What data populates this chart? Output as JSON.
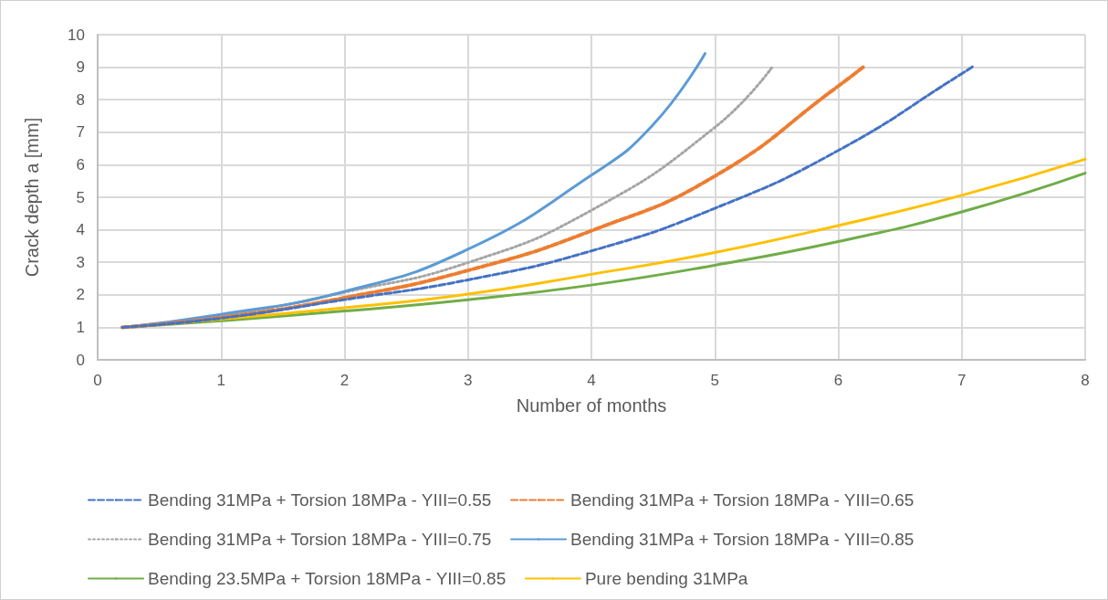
{
  "chart_data": {
    "type": "line",
    "xlabel": "Number of months",
    "ylabel": "Crack depth a [mm]",
    "xlim": [
      0,
      8
    ],
    "xticks": [
      0,
      1,
      2,
      3,
      4,
      5,
      6,
      7,
      8
    ],
    "ylim": [
      0,
      10
    ],
    "yticks": [
      0,
      1,
      2,
      3,
      4,
      5,
      6,
      7,
      8,
      9,
      10
    ],
    "grid": true,
    "legend": "bottom",
    "marker": "none",
    "series": [
      {
        "name": "Bending 31MPa + Torsion 18MPa - YIII=0.55",
        "color": "#4472c4",
        "line_style": "dashed",
        "x": [
          0.2,
          1,
          2,
          3,
          4,
          5,
          6,
          7,
          7.1
        ],
        "values": [
          1,
          1.28,
          1.85,
          2.46,
          3.35,
          4.66,
          6.44,
          8.8,
          9.05
        ]
      },
      {
        "name": "Bending 31MPa + Torsion 18MPa - YIII=0.65",
        "color": "#ed7d31",
        "line_style": "dashed",
        "x": [
          0.2,
          1,
          2,
          3,
          4,
          5,
          6,
          6.2
        ],
        "values": [
          1,
          1.3,
          1.91,
          2.75,
          3.97,
          5.65,
          8.42,
          9.0
        ]
      },
      {
        "name": "Bending 31MPa + Torsion 18MPa - YIII=0.75",
        "color": "#a5a5a5",
        "line_style": "dotted",
        "x": [
          0.2,
          1,
          2,
          3,
          4,
          5,
          5.46
        ],
        "values": [
          1,
          1.35,
          2.08,
          2.99,
          4.6,
          7.15,
          8.98
        ]
      },
      {
        "name": "Bending 31MPa + Torsion 18MPa - YIII=0.85",
        "color": "#5b9bd5",
        "line_style": "solid",
        "x": [
          0.2,
          1,
          2,
          3,
          4,
          4.49,
          4.92
        ],
        "values": [
          1,
          1.4,
          2.1,
          3.4,
          5.68,
          7.19,
          9.42
        ]
      },
      {
        "name": "Bending 23.5MPa + Torsion 18MPa - YIII=0.85",
        "color": "#70ad47",
        "line_style": "solid",
        "x": [
          0.2,
          1,
          2,
          3,
          4,
          5,
          6,
          7,
          8
        ],
        "values": [
          1,
          1.2,
          1.5,
          1.85,
          2.3,
          2.91,
          3.64,
          4.55,
          5.74
        ]
      },
      {
        "name": "Pure bending 31MPa",
        "color": "#ffc000",
        "line_style": "solid",
        "x": [
          0.2,
          1,
          2,
          3,
          4,
          5,
          6,
          7,
          8
        ],
        "values": [
          1,
          1.25,
          1.6,
          2.02,
          2.63,
          3.3,
          4.13,
          5.06,
          6.17
        ]
      }
    ]
  }
}
